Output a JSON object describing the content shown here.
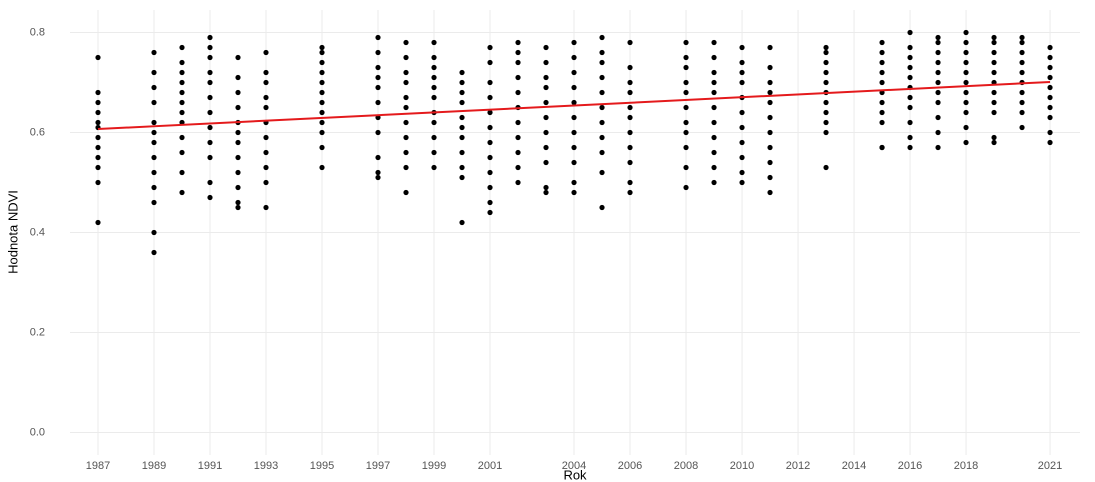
{
  "chart_data": {
    "type": "scatter",
    "x_label": "Rok",
    "y_label": "Hodnota NDVI",
    "point_color": "#000000",
    "groups": [
      {
        "x": 1987,
        "values": [
          0.42,
          0.5,
          0.53,
          0.55,
          0.57,
          0.59,
          0.61,
          0.62,
          0.64,
          0.66,
          0.68,
          0.75
        ]
      },
      {
        "x": 1989,
        "values": [
          0.36,
          0.4,
          0.46,
          0.49,
          0.52,
          0.55,
          0.58,
          0.6,
          0.62,
          0.66,
          0.69,
          0.72,
          0.76
        ]
      },
      {
        "x": 1990,
        "values": [
          0.48,
          0.52,
          0.56,
          0.59,
          0.62,
          0.64,
          0.66,
          0.68,
          0.7,
          0.72,
          0.74,
          0.77
        ]
      },
      {
        "x": 1991,
        "values": [
          0.47,
          0.5,
          0.55,
          0.58,
          0.61,
          0.64,
          0.67,
          0.7,
          0.72,
          0.75,
          0.77,
          0.79
        ]
      },
      {
        "x": 1992,
        "values": [
          0.45,
          0.46,
          0.49,
          0.52,
          0.55,
          0.58,
          0.6,
          0.62,
          0.65,
          0.68,
          0.71,
          0.75
        ]
      },
      {
        "x": 1993,
        "values": [
          0.45,
          0.5,
          0.53,
          0.56,
          0.59,
          0.62,
          0.65,
          0.67,
          0.7,
          0.72,
          0.76
        ]
      },
      {
        "x": 1995,
        "values": [
          0.53,
          0.57,
          0.6,
          0.62,
          0.64,
          0.66,
          0.68,
          0.7,
          0.72,
          0.74,
          0.76,
          0.77
        ]
      },
      {
        "x": 1997,
        "values": [
          0.51,
          0.52,
          0.55,
          0.6,
          0.63,
          0.66,
          0.69,
          0.71,
          0.73,
          0.76,
          0.79
        ]
      },
      {
        "x": 1998,
        "values": [
          0.48,
          0.53,
          0.56,
          0.59,
          0.62,
          0.65,
          0.67,
          0.7,
          0.72,
          0.75,
          0.78
        ]
      },
      {
        "x": 1999,
        "values": [
          0.53,
          0.56,
          0.59,
          0.62,
          0.64,
          0.67,
          0.69,
          0.71,
          0.73,
          0.75,
          0.78
        ]
      },
      {
        "x": 2000,
        "values": [
          0.42,
          0.51,
          0.53,
          0.56,
          0.59,
          0.61,
          0.63,
          0.66,
          0.68,
          0.7,
          0.72
        ]
      },
      {
        "x": 2001,
        "values": [
          0.44,
          0.46,
          0.49,
          0.52,
          0.55,
          0.58,
          0.61,
          0.64,
          0.67,
          0.7,
          0.74,
          0.77
        ]
      },
      {
        "x": 2002,
        "values": [
          0.5,
          0.53,
          0.56,
          0.59,
          0.62,
          0.65,
          0.68,
          0.71,
          0.74,
          0.76,
          0.78
        ]
      },
      {
        "x": 2003,
        "values": [
          0.48,
          0.49,
          0.54,
          0.57,
          0.6,
          0.63,
          0.66,
          0.69,
          0.71,
          0.74,
          0.77
        ]
      },
      {
        "x": 2004,
        "values": [
          0.48,
          0.5,
          0.54,
          0.57,
          0.6,
          0.63,
          0.66,
          0.69,
          0.72,
          0.75,
          0.78
        ]
      },
      {
        "x": 2005,
        "values": [
          0.45,
          0.52,
          0.56,
          0.59,
          0.62,
          0.65,
          0.68,
          0.71,
          0.74,
          0.76,
          0.79
        ]
      },
      {
        "x": 2006,
        "values": [
          0.48,
          0.5,
          0.54,
          0.57,
          0.6,
          0.63,
          0.65,
          0.68,
          0.7,
          0.73,
          0.78
        ]
      },
      {
        "x": 2008,
        "values": [
          0.49,
          0.53,
          0.57,
          0.6,
          0.62,
          0.65,
          0.68,
          0.7,
          0.73,
          0.75,
          0.78
        ]
      },
      {
        "x": 2009,
        "values": [
          0.5,
          0.53,
          0.56,
          0.59,
          0.62,
          0.65,
          0.68,
          0.7,
          0.72,
          0.75,
          0.78
        ]
      },
      {
        "x": 2010,
        "values": [
          0.5,
          0.52,
          0.55,
          0.58,
          0.61,
          0.64,
          0.67,
          0.7,
          0.72,
          0.74,
          0.77
        ]
      },
      {
        "x": 2011,
        "values": [
          0.48,
          0.51,
          0.54,
          0.57,
          0.6,
          0.63,
          0.66,
          0.68,
          0.7,
          0.73,
          0.77
        ]
      },
      {
        "x": 2013,
        "values": [
          0.53,
          0.6,
          0.62,
          0.64,
          0.66,
          0.68,
          0.7,
          0.72,
          0.74,
          0.76,
          0.77
        ]
      },
      {
        "x": 2015,
        "values": [
          0.57,
          0.57,
          0.62,
          0.64,
          0.66,
          0.68,
          0.7,
          0.72,
          0.74,
          0.76,
          0.78
        ]
      },
      {
        "x": 2016,
        "values": [
          0.57,
          0.59,
          0.62,
          0.65,
          0.67,
          0.69,
          0.71,
          0.73,
          0.75,
          0.77,
          0.8
        ]
      },
      {
        "x": 2017,
        "values": [
          0.57,
          0.6,
          0.63,
          0.66,
          0.68,
          0.7,
          0.72,
          0.74,
          0.76,
          0.78,
          0.79
        ]
      },
      {
        "x": 2018,
        "values": [
          0.58,
          0.61,
          0.64,
          0.66,
          0.68,
          0.7,
          0.72,
          0.74,
          0.76,
          0.78,
          0.8
        ]
      },
      {
        "x": 2019,
        "values": [
          0.58,
          0.59,
          0.64,
          0.66,
          0.68,
          0.7,
          0.72,
          0.74,
          0.76,
          0.78,
          0.79
        ]
      },
      {
        "x": 2020,
        "values": [
          0.61,
          0.64,
          0.66,
          0.68,
          0.7,
          0.72,
          0.74,
          0.76,
          0.78,
          0.79
        ]
      },
      {
        "x": 2021,
        "values": [
          0.58,
          0.6,
          0.63,
          0.65,
          0.67,
          0.69,
          0.71,
          0.73,
          0.75,
          0.77
        ]
      }
    ],
    "trend": {
      "color": "#e41a1c",
      "x": [
        1987,
        2021
      ],
      "y": [
        0.607,
        0.701
      ]
    },
    "xlim": [
      1986,
      2022.07
    ],
    "ylim": [
      -0.045,
      0.845
    ],
    "xticks": [
      1987,
      1989,
      1991,
      1993,
      1995,
      1997,
      1999,
      2001,
      2004,
      2006,
      2008,
      2010,
      2012,
      2014,
      2016,
      2018,
      2021
    ],
    "yticks": [
      {
        "value": 0,
        "label": "0.0"
      },
      0.2,
      0.4,
      0.6,
      0.8
    ],
    "grid": true
  }
}
